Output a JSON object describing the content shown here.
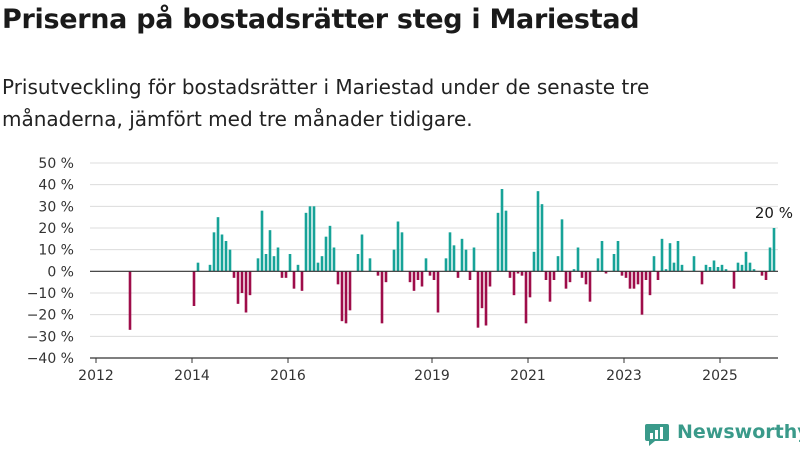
{
  "header": {
    "title": "Priserna på bostadsrätter steg i Mariestad",
    "subtitle": "Prisutveckling för bostadsrätter i Mariestad under de senaste tre månaderna, jämfört med tre månader tidigare."
  },
  "brand": {
    "name": "Newsworthy",
    "icon": "newsworthy-logo-icon",
    "color": "#3a9a8a"
  },
  "colors": {
    "positive": "#17a398",
    "negative": "#9e0d4a",
    "grid": "#dcdcdc",
    "axis": "#333333"
  },
  "chart_data": {
    "type": "bar",
    "x_start_month": "2012-01",
    "y_unit": "%",
    "ylim": [
      -40,
      50
    ],
    "yticks": [
      -40,
      -30,
      -20,
      -10,
      0,
      10,
      20,
      30,
      40,
      50
    ],
    "ytick_labels": [
      "−40 %",
      "−30 %",
      "−20 %",
      "−10 %",
      "0 %",
      "10 %",
      "20 %",
      "30 %",
      "40 %",
      "50 %"
    ],
    "xticks": [
      "2012",
      "2014",
      "2016",
      "2019",
      "2021",
      "2023",
      "2025"
    ],
    "grid": "horizontal",
    "annotation": {
      "text": "20 %"
    },
    "values": [
      null,
      null,
      null,
      null,
      null,
      null,
      null,
      null,
      -27,
      null,
      null,
      null,
      null,
      null,
      null,
      null,
      null,
      null,
      null,
      null,
      null,
      null,
      null,
      null,
      -16,
      4,
      null,
      null,
      3,
      18,
      25,
      17,
      14,
      10,
      -3,
      -15,
      -10,
      -19,
      -11,
      null,
      6,
      28,
      8,
      19,
      7,
      11,
      -3,
      -3,
      8,
      -8,
      3,
      -9,
      27,
      30,
      30,
      4,
      7,
      16,
      21,
      11,
      -6,
      -23,
      -24,
      -18,
      null,
      8,
      17,
      null,
      6,
      null,
      -2,
      -24,
      -5,
      null,
      10,
      23,
      18,
      null,
      -5,
      -9,
      -4,
      -7,
      6,
      -2,
      -4,
      -19,
      null,
      6,
      18,
      12,
      -3,
      15,
      10,
      -4,
      11,
      -26,
      -17,
      -25,
      -7,
      null,
      27,
      38,
      28,
      -3,
      -11,
      -1,
      -2,
      -24,
      -12,
      9,
      37,
      31,
      -4,
      -14,
      -4,
      7,
      24,
      -8,
      -5,
      1,
      11,
      -3,
      -6,
      -14,
      null,
      6,
      14,
      -1,
      null,
      8,
      14,
      -2,
      -3,
      -8,
      -8,
      -6,
      -20,
      -4,
      -11,
      7,
      -4,
      15,
      1,
      13,
      4,
      14,
      3,
      null,
      null,
      7,
      null,
      -6,
      3,
      2,
      5,
      2,
      3,
      1,
      null,
      -8,
      4,
      3,
      9,
      4,
      1,
      null,
      -2,
      -4,
      11,
      20
    ]
  }
}
